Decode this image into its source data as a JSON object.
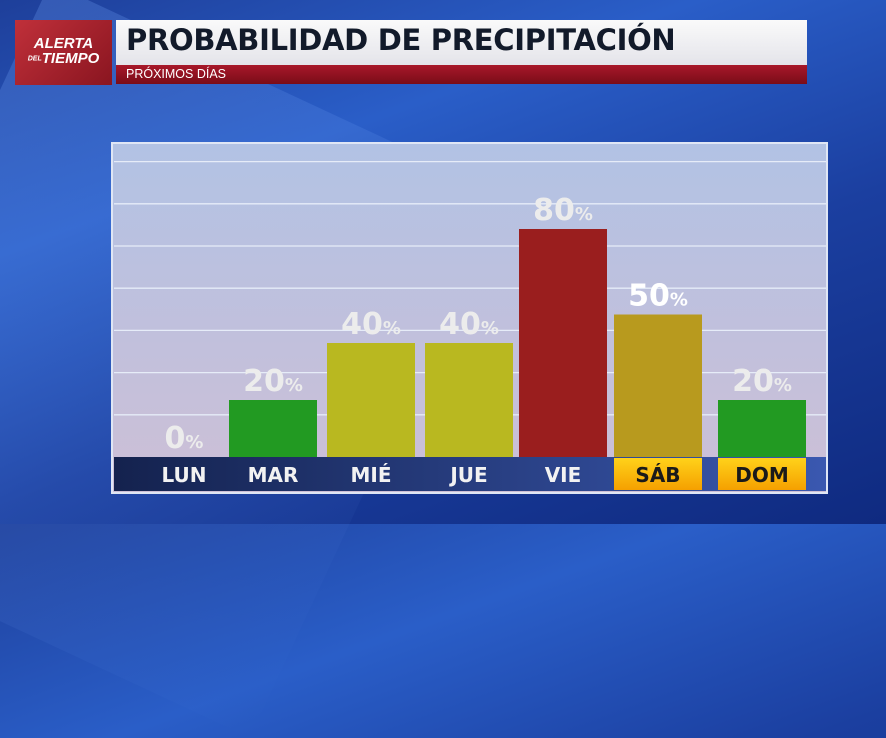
{
  "header": {
    "logo_line1": "ALERTA",
    "logo_del": "DEL",
    "logo_line2": "TIEMPO",
    "title": "PROBABILIDAD DE PRECIPITACIÓN",
    "subtitle": "PRÓXIMOS DÍAS"
  },
  "chart_data": {
    "type": "bar",
    "categories": [
      "LUN",
      "MAR",
      "MIÉ",
      "JUE",
      "VIE",
      "SÁB",
      "DOM"
    ],
    "values": [
      0,
      20,
      40,
      40,
      80,
      50,
      20
    ],
    "value_suffix": "%",
    "title": "PROBABILIDAD DE PRECIPITACIÓN",
    "subtitle": "PRÓXIMOS DÍAS",
    "ylim": [
      0,
      100
    ],
    "grid": true,
    "colors": [
      "#229a22",
      "#229a22",
      "#b9b820",
      "#b9b820",
      "#9a1e1e",
      "#b89a1e",
      "#229a22"
    ],
    "highlighted_categories": [
      "SÁB",
      "DOM"
    ],
    "highlight_color": "#ffb800"
  }
}
